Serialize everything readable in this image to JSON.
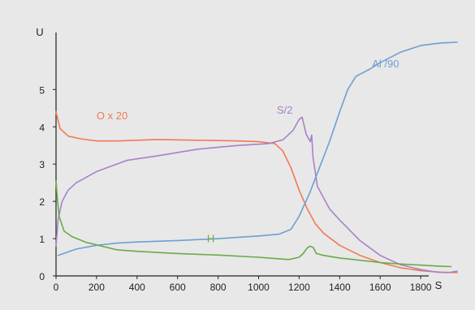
{
  "chart_data": {
    "type": "line",
    "title": "",
    "xlabel": "S",
    "ylabel": "U",
    "xlim": [
      0,
      2000
    ],
    "ylim": [
      0,
      6.4
    ],
    "x_ticks": [
      0,
      200,
      400,
      600,
      800,
      1000,
      1200,
      1400,
      1600,
      1800
    ],
    "x_tick_labels": [
      "0",
      "200",
      "400",
      "600",
      "800",
      "1000",
      "1200",
      "1400",
      "1600",
      "1800"
    ],
    "y_ticks": [
      0,
      1,
      2,
      3,
      4,
      5
    ],
    "y_tick_labels": [
      "0",
      "1",
      "2",
      "3",
      "4",
      "5"
    ],
    "grid": false,
    "legend": "none (series labelled inline)",
    "series": [
      {
        "name": "O x 20",
        "color": "#f07a55",
        "label_at": [
          200,
          4.2
        ],
        "points": [
          [
            0,
            4.4
          ],
          [
            20,
            3.95
          ],
          [
            60,
            3.75
          ],
          [
            120,
            3.68
          ],
          [
            200,
            3.62
          ],
          [
            300,
            3.62
          ],
          [
            500,
            3.66
          ],
          [
            700,
            3.64
          ],
          [
            900,
            3.62
          ],
          [
            1000,
            3.6
          ],
          [
            1080,
            3.55
          ],
          [
            1120,
            3.35
          ],
          [
            1160,
            2.9
          ],
          [
            1200,
            2.3
          ],
          [
            1240,
            1.8
          ],
          [
            1280,
            1.4
          ],
          [
            1320,
            1.15
          ],
          [
            1400,
            0.82
          ],
          [
            1500,
            0.55
          ],
          [
            1600,
            0.36
          ],
          [
            1700,
            0.22
          ],
          [
            1800,
            0.14
          ],
          [
            1900,
            0.1
          ],
          [
            1980,
            0.09
          ]
        ]
      },
      {
        "name": "S/2",
        "color": "#a882c6",
        "label_at": [
          1090,
          4.35
        ],
        "points": [
          [
            0,
            0.8
          ],
          [
            10,
            1.5
          ],
          [
            30,
            2.0
          ],
          [
            60,
            2.3
          ],
          [
            100,
            2.5
          ],
          [
            200,
            2.8
          ],
          [
            350,
            3.1
          ],
          [
            500,
            3.22
          ],
          [
            700,
            3.4
          ],
          [
            900,
            3.5
          ],
          [
            1050,
            3.55
          ],
          [
            1120,
            3.65
          ],
          [
            1170,
            3.9
          ],
          [
            1200,
            4.2
          ],
          [
            1215,
            4.26
          ],
          [
            1235,
            3.8
          ],
          [
            1255,
            3.6
          ],
          [
            1262,
            3.78
          ],
          [
            1268,
            3.2
          ],
          [
            1290,
            2.4
          ],
          [
            1350,
            1.8
          ],
          [
            1400,
            1.5
          ],
          [
            1500,
            0.95
          ],
          [
            1600,
            0.55
          ],
          [
            1700,
            0.3
          ],
          [
            1800,
            0.17
          ],
          [
            1880,
            0.1
          ],
          [
            1940,
            0.09
          ],
          [
            1980,
            0.13
          ]
        ]
      },
      {
        "name": "Al /90",
        "color": "#6f9fd0",
        "label_at": [
          1560,
          5.6
        ],
        "points": [
          [
            10,
            0.55
          ],
          [
            100,
            0.72
          ],
          [
            200,
            0.82
          ],
          [
            300,
            0.88
          ],
          [
            400,
            0.91
          ],
          [
            600,
            0.95
          ],
          [
            800,
            1.0
          ],
          [
            1000,
            1.07
          ],
          [
            1100,
            1.12
          ],
          [
            1160,
            1.25
          ],
          [
            1200,
            1.6
          ],
          [
            1250,
            2.2
          ],
          [
            1300,
            2.9
          ],
          [
            1350,
            3.6
          ],
          [
            1400,
            4.4
          ],
          [
            1440,
            5.0
          ],
          [
            1480,
            5.35
          ],
          [
            1550,
            5.55
          ],
          [
            1600,
            5.72
          ],
          [
            1700,
            6.0
          ],
          [
            1800,
            6.18
          ],
          [
            1900,
            6.25
          ],
          [
            1980,
            6.27
          ]
        ]
      },
      {
        "name": "H",
        "color": "#6aaa48",
        "label_at": [
          745,
          0.9
        ],
        "points": [
          [
            0,
            2.55
          ],
          [
            5,
            2.2
          ],
          [
            15,
            1.6
          ],
          [
            40,
            1.2
          ],
          [
            80,
            1.05
          ],
          [
            150,
            0.9
          ],
          [
            300,
            0.7
          ],
          [
            400,
            0.66
          ],
          [
            600,
            0.6
          ],
          [
            800,
            0.56
          ],
          [
            1000,
            0.5
          ],
          [
            1100,
            0.46
          ],
          [
            1150,
            0.44
          ],
          [
            1200,
            0.5
          ],
          [
            1220,
            0.6
          ],
          [
            1240,
            0.75
          ],
          [
            1255,
            0.8
          ],
          [
            1270,
            0.76
          ],
          [
            1285,
            0.6
          ],
          [
            1320,
            0.55
          ],
          [
            1400,
            0.48
          ],
          [
            1500,
            0.42
          ],
          [
            1600,
            0.36
          ],
          [
            1700,
            0.32
          ],
          [
            1800,
            0.29
          ],
          [
            1900,
            0.26
          ],
          [
            1950,
            0.25
          ]
        ]
      }
    ]
  }
}
